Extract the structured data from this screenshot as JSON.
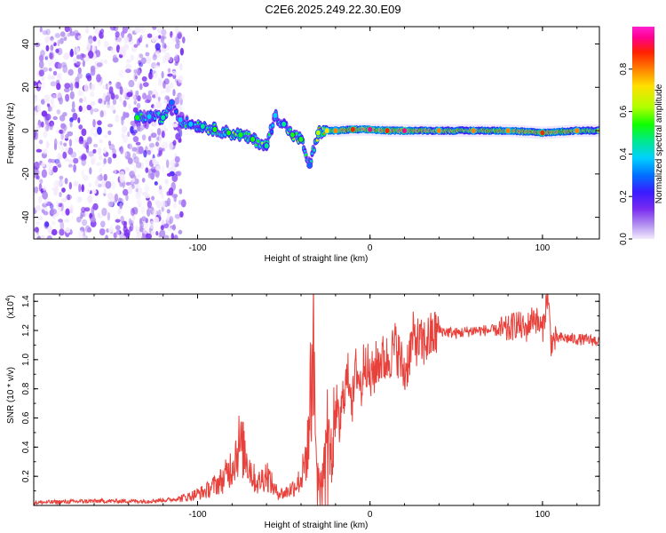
{
  "title": "C2E6.2025.249.22.30.E09",
  "chart_data": [
    {
      "type": "heatmap",
      "title": "C2E6.2025.249.22.30.E09",
      "xlabel": "Height of straight line (km)",
      "ylabel": "Frequency (Hz)",
      "xlim": [
        -195,
        133
      ],
      "ylim": [
        -50,
        48
      ],
      "x_ticks": [
        -100,
        0,
        100
      ],
      "x_tick_labels": [
        "-100",
        "0",
        "100"
      ],
      "y_ticks": [
        -40,
        -20,
        0,
        20,
        40
      ],
      "y_tick_labels": [
        "-40",
        "-20",
        "0",
        "20",
        "40"
      ],
      "colorbar": {
        "label": "Normalized spectral amplitude",
        "range": [
          0,
          1
        ],
        "ticks": [
          0.0,
          0.2,
          0.4,
          0.6,
          0.8
        ],
        "tick_labels": [
          "0.0",
          "0.2",
          "0.4",
          "0.6",
          "0.8"
        ],
        "colormap": [
          "#f3eafd",
          "#b08cf0",
          "#7a2cf0",
          "#3a1aff",
          "#0070ff",
          "#00d0ff",
          "#00e890",
          "#10ff00",
          "#b0ff00",
          "#ffe000",
          "#ff8000",
          "#ff2000",
          "#ff0090",
          "#ff20d0"
        ]
      },
      "noise_region": {
        "x_range": [
          -195,
          -108
        ],
        "freq_range": [
          -50,
          48
        ],
        "amplitude_range": [
          0.0,
          0.2
        ]
      },
      "track": [
        {
          "x": -135,
          "freq": 6.0,
          "amp": 0.55
        },
        {
          "x": -128,
          "freq": 6.5,
          "amp": 0.35
        },
        {
          "x": -120,
          "freq": 6.0,
          "amp": 0.45
        },
        {
          "x": -115,
          "freq": 13.0,
          "amp": 0.3
        },
        {
          "x": -110,
          "freq": 5.0,
          "amp": 0.35
        },
        {
          "x": -104,
          "freq": 3.0,
          "amp": 0.4
        },
        {
          "x": -97,
          "freq": 2.0,
          "amp": 0.45
        },
        {
          "x": -90,
          "freq": 0.5,
          "amp": 0.5
        },
        {
          "x": -82,
          "freq": -1.0,
          "amp": 0.5
        },
        {
          "x": -75,
          "freq": -2.0,
          "amp": 0.55
        },
        {
          "x": -68,
          "freq": -4.0,
          "amp": 0.5
        },
        {
          "x": -60,
          "freq": -7.0,
          "amp": 0.45
        },
        {
          "x": -55,
          "freq": 7.0,
          "amp": 0.35
        },
        {
          "x": -50,
          "freq": 3.0,
          "amp": 0.45
        },
        {
          "x": -45,
          "freq": -2.0,
          "amp": 0.5
        },
        {
          "x": -40,
          "freq": -4.0,
          "amp": 0.5
        },
        {
          "x": -35,
          "freq": -16.0,
          "amp": 0.3
        },
        {
          "x": -30,
          "freq": -1.0,
          "amp": 0.6
        },
        {
          "x": -25,
          "freq": 0.0,
          "amp": 0.7
        },
        {
          "x": -20,
          "freq": 0.0,
          "amp": 0.8
        },
        {
          "x": -10,
          "freq": 0.5,
          "amp": 0.85
        },
        {
          "x": 0,
          "freq": 0.5,
          "amp": 0.9
        },
        {
          "x": 10,
          "freq": 0.0,
          "amp": 0.85
        },
        {
          "x": 20,
          "freq": 0.0,
          "amp": 0.9
        },
        {
          "x": 40,
          "freq": 0.0,
          "amp": 0.75
        },
        {
          "x": 60,
          "freq": 0.0,
          "amp": 0.75
        },
        {
          "x": 80,
          "freq": 0.0,
          "amp": 0.8
        },
        {
          "x": 100,
          "freq": -1.0,
          "amp": 0.85
        },
        {
          "x": 120,
          "freq": 0.0,
          "amp": 0.75
        },
        {
          "x": 133,
          "freq": 0.0,
          "amp": 0.7
        }
      ]
    },
    {
      "type": "line",
      "xlabel": "Height of straight line (km)",
      "ylabel": "SNR (10 * v/v)",
      "multiplier_label": "(x10",
      "multiplier_exponent": "4",
      "multiplier_close": ")",
      "xlim": [
        -195,
        133
      ],
      "ylim": [
        0,
        1.45
      ],
      "x_ticks": [
        -100,
        0,
        100
      ],
      "x_tick_labels": [
        "-100",
        "0",
        "100"
      ],
      "y_ticks": [
        0.2,
        0.4,
        0.6,
        0.8,
        1.0,
        1.2,
        1.4
      ],
      "y_tick_labels": [
        "0.2",
        "0.4",
        "0.6",
        "0.8",
        "1.0",
        "1.2",
        "1.4"
      ],
      "color": "#e8403a",
      "series": [
        {
          "name": "SNR",
          "x": [
            -195,
            -160,
            -130,
            -115,
            -105,
            -95,
            -85,
            -80,
            -76,
            -72,
            -68,
            -65,
            -60,
            -55,
            -50,
            -45,
            -40,
            -36,
            -34,
            -33,
            -32,
            -30,
            -28,
            -25,
            -22,
            -20,
            -18,
            -15,
            -12,
            -10,
            -8,
            -5,
            -3,
            0,
            5,
            10,
            15,
            20,
            25,
            30,
            40,
            50,
            60,
            70,
            80,
            85,
            90,
            95,
            100,
            103,
            105,
            110,
            120,
            133
          ],
          "y": [
            0.02,
            0.03,
            0.03,
            0.04,
            0.06,
            0.1,
            0.18,
            0.28,
            0.42,
            0.35,
            0.2,
            0.15,
            0.22,
            0.1,
            0.08,
            0.12,
            0.18,
            0.4,
            0.9,
            1.2,
            0.6,
            0.2,
            0.15,
            0.6,
            0.3,
            0.75,
            0.5,
            0.8,
            0.9,
            0.7,
            0.95,
            0.8,
            1.05,
            0.85,
            1.0,
            1.0,
            1.1,
            0.9,
            1.15,
            1.1,
            1.2,
            1.18,
            1.2,
            1.2,
            1.2,
            1.25,
            1.2,
            1.3,
            1.2,
            1.45,
            1.12,
            1.15,
            1.14,
            1.13
          ]
        }
      ]
    }
  ]
}
